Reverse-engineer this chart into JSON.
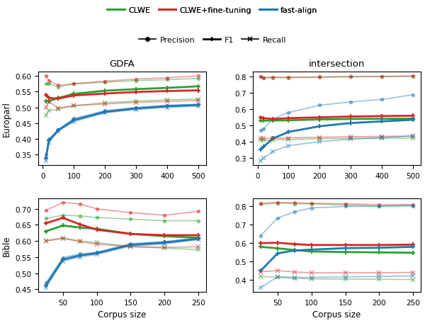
{
  "europarl_gdfa_x": [
    10,
    20,
    50,
    100,
    200,
    300,
    400,
    500
  ],
  "europarl_gdfa": {
    "clwe_precision": [
      0.575,
      0.575,
      0.565,
      0.575,
      0.58,
      0.585,
      0.588,
      0.592
    ],
    "clwe_f1": [
      0.52,
      0.52,
      0.53,
      0.543,
      0.553,
      0.558,
      0.562,
      0.567
    ],
    "clwe_recall": [
      0.475,
      0.49,
      0.495,
      0.505,
      0.515,
      0.52,
      0.524,
      0.527
    ],
    "clweft_precision": [
      0.6,
      0.585,
      0.57,
      0.575,
      0.583,
      0.59,
      0.594,
      0.6
    ],
    "clweft_f1": [
      0.54,
      0.53,
      0.528,
      0.538,
      0.544,
      0.549,
      0.552,
      0.554
    ],
    "clweft_recall": [
      0.5,
      0.518,
      0.498,
      0.506,
      0.511,
      0.516,
      0.519,
      0.522
    ],
    "fa_precision": [
      0.35,
      0.4,
      0.43,
      0.465,
      0.49,
      0.5,
      0.507,
      0.51
    ],
    "fa_f1": [
      0.34,
      0.395,
      0.428,
      0.46,
      0.486,
      0.497,
      0.504,
      0.508
    ],
    "fa_recall": [
      0.33,
      0.39,
      0.425,
      0.455,
      0.483,
      0.493,
      0.5,
      0.504
    ]
  },
  "europarl_inter_x": [
    10,
    20,
    50,
    100,
    200,
    300,
    400,
    500
  ],
  "europarl_inter": {
    "clwe_precision": [
      0.8,
      0.795,
      0.795,
      0.795,
      0.797,
      0.8,
      0.801,
      0.802
    ],
    "clwe_f1": [
      0.53,
      0.53,
      0.53,
      0.532,
      0.537,
      0.54,
      0.541,
      0.542
    ],
    "clwe_recall": [
      0.41,
      0.408,
      0.41,
      0.413,
      0.418,
      0.42,
      0.421,
      0.422
    ],
    "clweft_precision": [
      0.8,
      0.795,
      0.798,
      0.798,
      0.8,
      0.802,
      0.803,
      0.806
    ],
    "clweft_f1": [
      0.55,
      0.545,
      0.54,
      0.545,
      0.55,
      0.555,
      0.558,
      0.56
    ],
    "clweft_recall": [
      0.42,
      0.42,
      0.42,
      0.423,
      0.427,
      0.43,
      0.432,
      0.435
    ],
    "fa_precision": [
      0.47,
      0.48,
      0.54,
      0.58,
      0.625,
      0.645,
      0.66,
      0.69
    ],
    "fa_f1": [
      0.35,
      0.37,
      0.42,
      0.46,
      0.495,
      0.515,
      0.525,
      0.535
    ],
    "fa_recall": [
      0.28,
      0.3,
      0.34,
      0.375,
      0.4,
      0.415,
      0.425,
      0.435
    ]
  },
  "bible_gdfa_x": [
    25,
    50,
    75,
    100,
    150,
    200,
    250
  ],
  "bible_gdfa": {
    "clwe_precision": [
      0.67,
      0.68,
      0.678,
      0.673,
      0.668,
      0.663,
      0.663
    ],
    "clwe_f1": [
      0.63,
      0.648,
      0.642,
      0.638,
      0.622,
      0.615,
      0.61
    ],
    "clwe_recall": [
      0.6,
      0.61,
      0.6,
      0.595,
      0.582,
      0.578,
      0.573
    ],
    "clweft_precision": [
      0.695,
      0.72,
      0.715,
      0.7,
      0.688,
      0.68,
      0.692
    ],
    "clweft_f1": [
      0.655,
      0.672,
      0.652,
      0.635,
      0.622,
      0.618,
      0.618
    ],
    "clweft_recall": [
      0.6,
      0.608,
      0.598,
      0.59,
      0.583,
      0.58,
      0.582
    ],
    "fa_precision": [
      0.47,
      0.548,
      0.56,
      0.565,
      0.592,
      0.598,
      0.61
    ],
    "fa_f1": [
      0.462,
      0.542,
      0.555,
      0.562,
      0.588,
      0.595,
      0.607
    ],
    "fa_recall": [
      0.455,
      0.537,
      0.55,
      0.558,
      0.584,
      0.591,
      0.604
    ]
  },
  "bible_inter_x": [
    25,
    50,
    75,
    100,
    150,
    200,
    250
  ],
  "bible_inter": {
    "clwe_precision": [
      0.81,
      0.815,
      0.813,
      0.812,
      0.806,
      0.8,
      0.8
    ],
    "clwe_f1": [
      0.58,
      0.572,
      0.563,
      0.555,
      0.552,
      0.55,
      0.548
    ],
    "clwe_recall": [
      0.42,
      0.416,
      0.41,
      0.407,
      0.406,
      0.405,
      0.403
    ],
    "clweft_precision": [
      0.815,
      0.82,
      0.818,
      0.815,
      0.812,
      0.808,
      0.808
    ],
    "clweft_f1": [
      0.6,
      0.602,
      0.595,
      0.59,
      0.59,
      0.59,
      0.592
    ],
    "clweft_recall": [
      0.445,
      0.452,
      0.444,
      0.44,
      0.44,
      0.44,
      0.442
    ],
    "fa_precision": [
      0.64,
      0.735,
      0.77,
      0.79,
      0.798,
      0.8,
      0.805
    ],
    "fa_f1": [
      0.45,
      0.545,
      0.56,
      0.565,
      0.573,
      0.575,
      0.58
    ],
    "fa_recall": [
      0.36,
      0.418,
      0.415,
      0.415,
      0.418,
      0.42,
      0.423
    ]
  },
  "colors": {
    "clwe": "#2ca02c",
    "clweft": "#d62728",
    "fa": "#1f77b4"
  },
  "alpha_thin": 0.45,
  "lw_thick": 2.0,
  "lw_thin": 1.2
}
